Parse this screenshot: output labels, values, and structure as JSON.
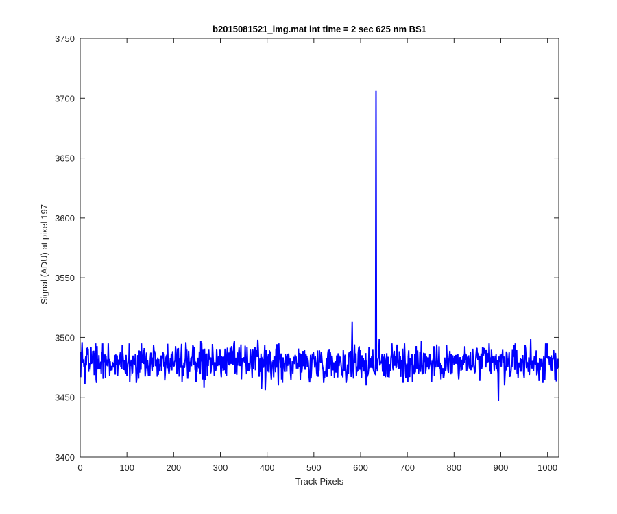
{
  "chart_data": {
    "type": "line",
    "title": "b2015081521_img.mat int time = 2 sec  625 nm BS1",
    "xlabel": "Track Pixels",
    "ylabel": "Signal (ADU) at pixel 197",
    "xlim": [
      0,
      1024
    ],
    "ylim": [
      3400,
      3750
    ],
    "xticks": [
      0,
      100,
      200,
      300,
      400,
      500,
      600,
      700,
      800,
      900,
      1000
    ],
    "yticks": [
      3400,
      3450,
      3500,
      3550,
      3600,
      3650,
      3700,
      3750
    ],
    "grid": false,
    "line_color": "#0000ff",
    "series": [
      {
        "baseline": 3479,
        "x_range": [
          1,
          1024
        ],
        "points_count": 1024,
        "noise_band": [
          3460,
          3497
        ],
        "features": [
          {
            "x": 4,
            "y": 3496
          },
          {
            "x": 10,
            "y": 3461
          },
          {
            "x": 35,
            "y": 3462
          },
          {
            "x": 60,
            "y": 3495
          },
          {
            "x": 120,
            "y": 3462
          },
          {
            "x": 218,
            "y": 3463
          },
          {
            "x": 226,
            "y": 3496
          },
          {
            "x": 258,
            "y": 3497
          },
          {
            "x": 265,
            "y": 3458
          },
          {
            "x": 330,
            "y": 3497
          },
          {
            "x": 345,
            "y": 3465
          },
          {
            "x": 380,
            "y": 3498
          },
          {
            "x": 388,
            "y": 3457
          },
          {
            "x": 396,
            "y": 3456
          },
          {
            "x": 424,
            "y": 3460
          },
          {
            "x": 582,
            "y": 3513
          },
          {
            "x": 612,
            "y": 3460
          },
          {
            "x": 633,
            "y": 3706
          },
          {
            "x": 640,
            "y": 3499
          },
          {
            "x": 658,
            "y": 3467
          },
          {
            "x": 730,
            "y": 3497
          },
          {
            "x": 752,
            "y": 3463
          },
          {
            "x": 810,
            "y": 3465
          },
          {
            "x": 875,
            "y": 3495
          },
          {
            "x": 895,
            "y": 3447
          },
          {
            "x": 908,
            "y": 3460
          },
          {
            "x": 964,
            "y": 3499
          },
          {
            "x": 990,
            "y": 3462
          }
        ]
      }
    ]
  }
}
